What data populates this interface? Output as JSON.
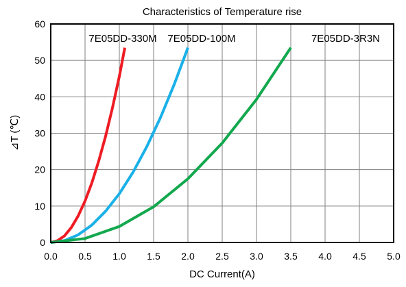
{
  "chart_data": {
    "type": "line",
    "title": "Characteristics of Temperature rise",
    "xlabel": "DC Current(A)",
    "ylabel": "⊿T (℃)",
    "xlim": [
      0,
      5
    ],
    "ylim": [
      0,
      60
    ],
    "x_ticks": [
      "0.0",
      "0.5",
      "1.0",
      "1.5",
      "2.0",
      "2.5",
      "3.0",
      "3.5",
      "4.0",
      "4.5",
      "5.0"
    ],
    "y_ticks": [
      "0",
      "10",
      "20",
      "30",
      "40",
      "50",
      "60"
    ],
    "grid": true,
    "legend": "none (series labels printed along top of plot)",
    "series": [
      {
        "name": "7E05DD-330M",
        "color": "#ee1c24",
        "x": [
          0,
          0.1,
          0.2,
          0.3,
          0.4,
          0.5,
          0.6,
          0.7,
          0.8,
          0.9,
          1.0,
          1.08
        ],
        "y": [
          0,
          0.5,
          1.8,
          4.1,
          7.3,
          11.4,
          16.4,
          22.4,
          29.2,
          37.0,
          45.6,
          53.5
        ]
      },
      {
        "name": "7E05DD-100M",
        "color": "#1ab0e8",
        "x": [
          0,
          0.2,
          0.4,
          0.6,
          0.8,
          1.0,
          1.2,
          1.4,
          1.6,
          1.8,
          2.0
        ],
        "y": [
          0,
          0.5,
          2.1,
          4.8,
          8.6,
          13.4,
          19.3,
          26.3,
          34.3,
          43.4,
          53.5
        ]
      },
      {
        "name": "7E05DD-3R3N",
        "color": "#13a84e",
        "x": [
          0,
          0.5,
          1.0,
          1.5,
          2.0,
          2.5,
          3.0,
          3.5
        ],
        "y": [
          0,
          1.1,
          4.4,
          9.8,
          17.5,
          27.3,
          39.3,
          53.5
        ]
      }
    ]
  }
}
